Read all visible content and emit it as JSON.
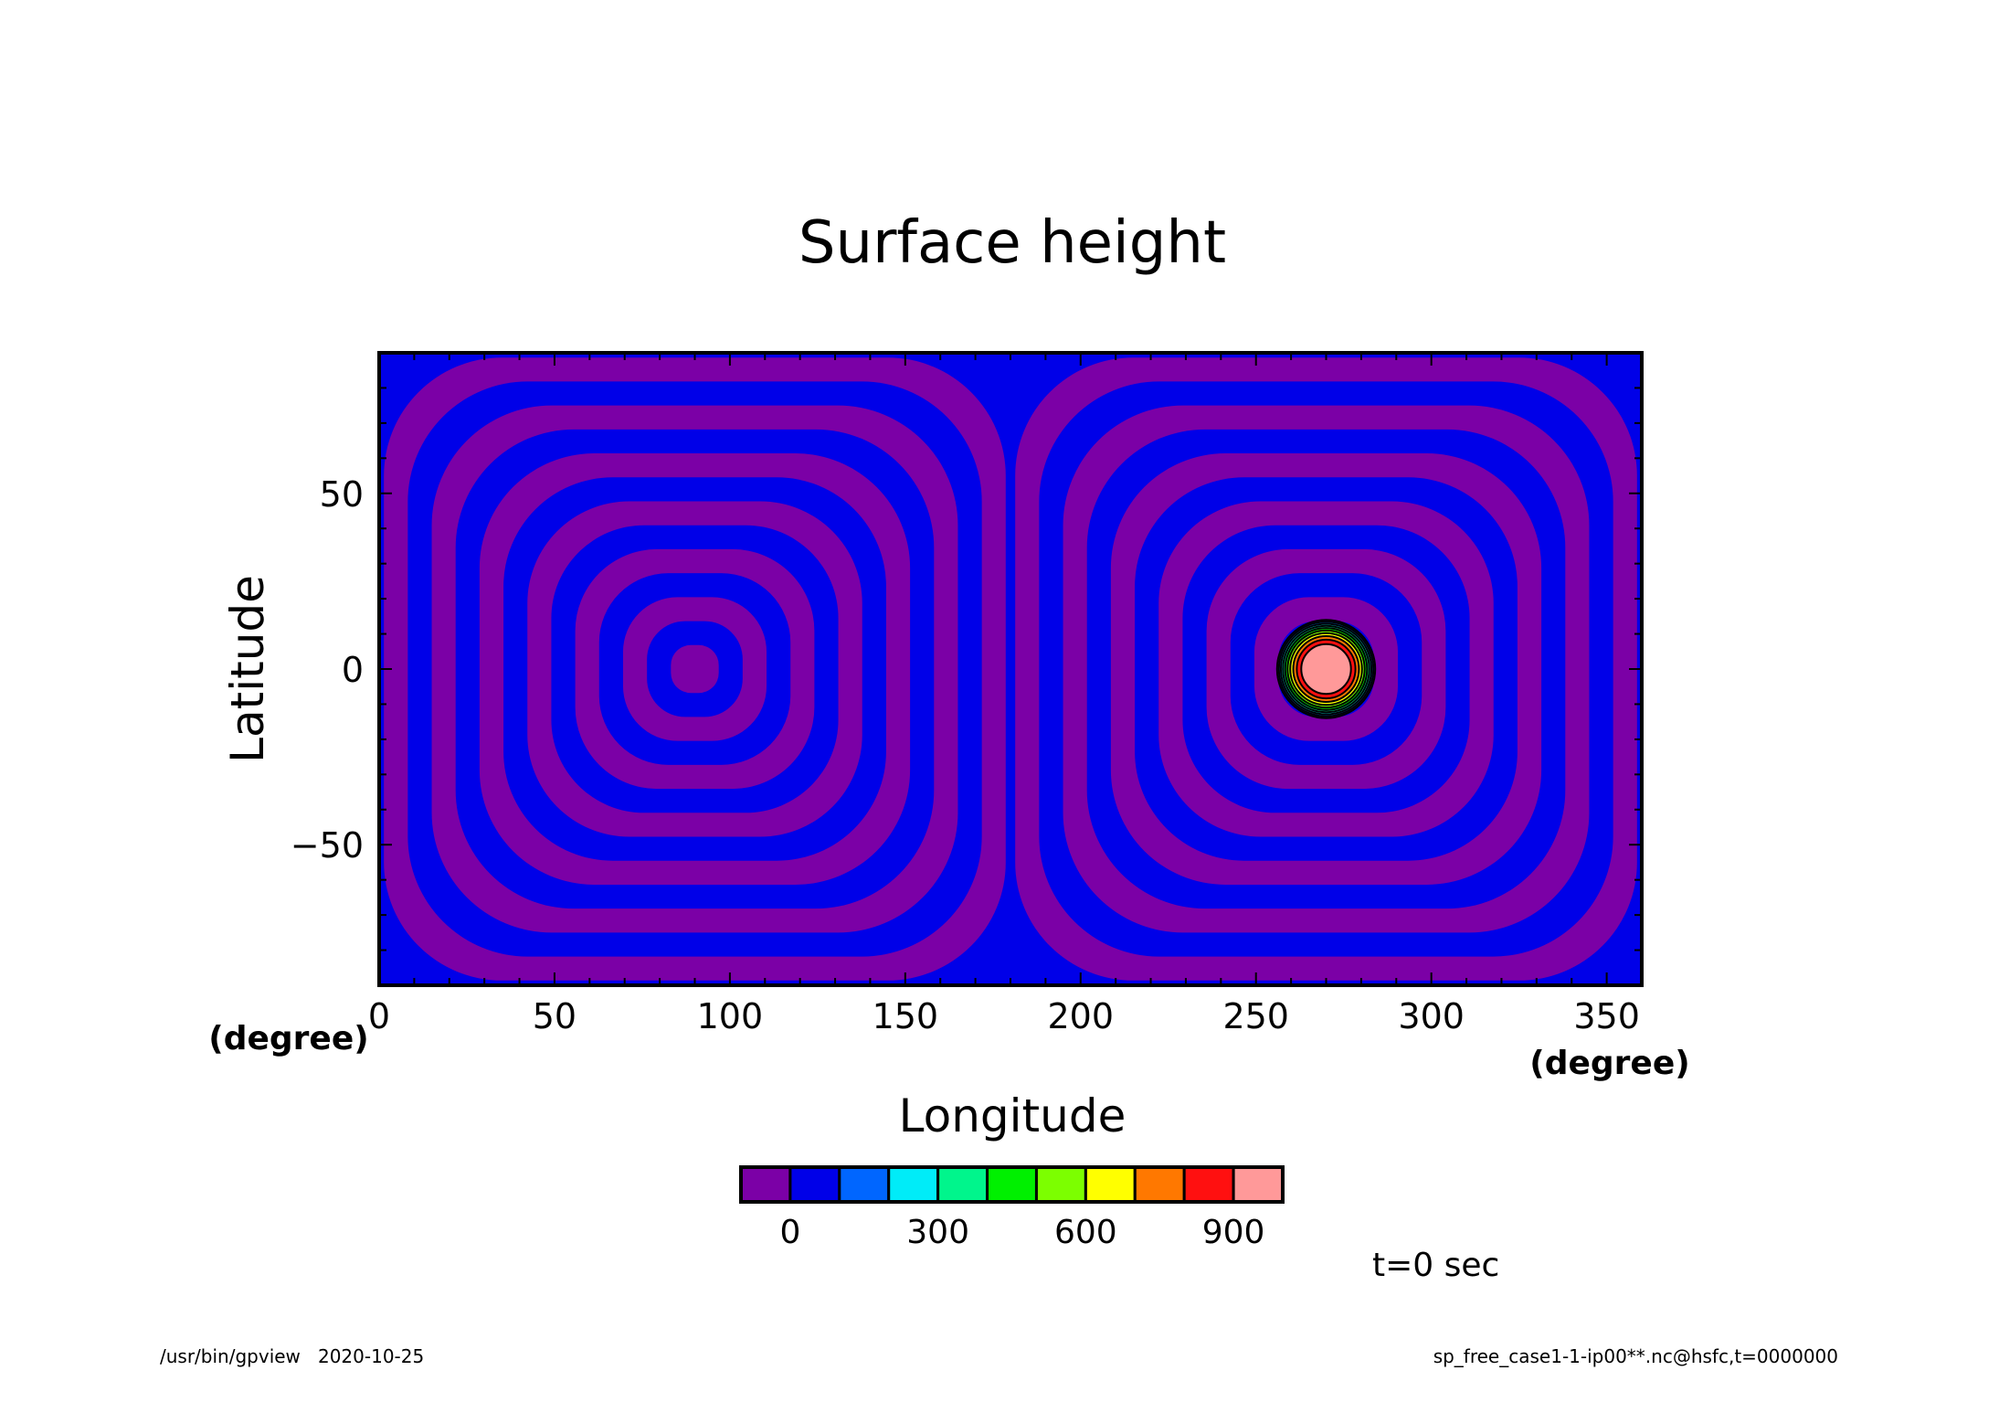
{
  "chart_data": {
    "type": "heatmap",
    "title": "Surface height",
    "xlabel": "Longitude",
    "ylabel": "Latitude",
    "x_unit": "(degree)",
    "y_unit": "(degree)",
    "xlim": [
      0,
      360
    ],
    "ylim": [
      -90,
      90
    ],
    "x_ticks": [
      0,
      50,
      100,
      150,
      200,
      250,
      300,
      350
    ],
    "x_tick_labels": [
      "0",
      "50",
      "100",
      "150",
      "200",
      "250",
      "300",
      "350"
    ],
    "y_ticks": [
      50,
      0,
      -50
    ],
    "y_tick_labels": [
      "50",
      "0",
      "−50"
    ],
    "field": {
      "ring_centers": [
        [
          90,
          0
        ],
        [
          270,
          0
        ]
      ],
      "background_levels": [
        "#7b00a6",
        "#0000e8"
      ],
      "peak": {
        "center": [
          270,
          0
        ],
        "max": 1000,
        "radius_deg": 14
      }
    },
    "colorbar": {
      "colors": [
        "#7b00a6",
        "#0000e8",
        "#0066ff",
        "#00ecf8",
        "#00f58c",
        "#00f000",
        "#7cff00",
        "#ffff00",
        "#ff7800",
        "#ff1010",
        "#ff9999"
      ],
      "levels": [
        -100,
        0,
        100,
        200,
        300,
        400,
        500,
        600,
        700,
        800,
        900,
        1000
      ],
      "tick_labels": [
        "0",
        "300",
        "600",
        "900"
      ],
      "tick_values": [
        0,
        300,
        600,
        900
      ]
    },
    "time_label": "t=0 sec",
    "footer_left": "/usr/bin/gpview   2020-10-25",
    "footer_right": "sp_free_case1-1-ip00**.nc@hsfc,t=0000000"
  }
}
